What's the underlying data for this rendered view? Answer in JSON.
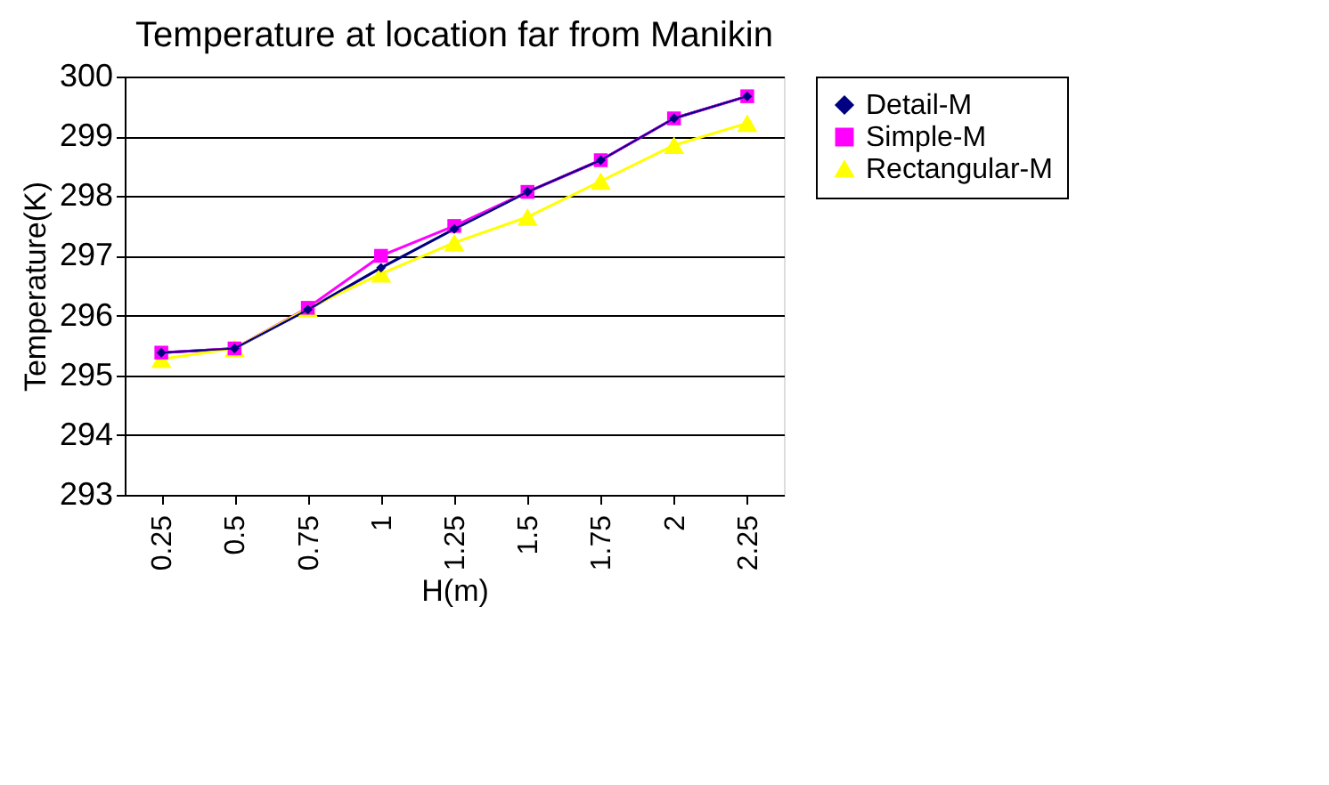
{
  "chart_data": {
    "type": "line",
    "title": "Temperature at location far from Manikin",
    "xlabel": "H(m)",
    "ylabel": "Temperature(K)",
    "categories": [
      "0.25",
      "0.5",
      "0.75",
      "1",
      "1.25",
      "1.5",
      "1.75",
      "2",
      "2.25"
    ],
    "series": [
      {
        "name": "Detail-M",
        "color": "#000080",
        "marker": "diamond",
        "values": [
          295.38,
          295.45,
          296.1,
          296.8,
          297.45,
          298.07,
          298.6,
          299.3,
          299.67
        ]
      },
      {
        "name": "Simple-M",
        "color": "#ff00ff",
        "marker": "square",
        "values": [
          295.38,
          295.45,
          296.13,
          297.0,
          297.5,
          298.07,
          298.6,
          299.3,
          299.67
        ]
      },
      {
        "name": "Rectangular-M",
        "color": "#ffff00",
        "marker": "triangle",
        "values": [
          295.27,
          295.45,
          296.12,
          296.7,
          297.22,
          297.65,
          298.25,
          298.85,
          299.22
        ]
      }
    ],
    "ylim": [
      293,
      300
    ],
    "yticks": [
      293,
      294,
      295,
      296,
      297,
      298,
      299,
      300
    ],
    "grid": "y",
    "legend": "right"
  }
}
